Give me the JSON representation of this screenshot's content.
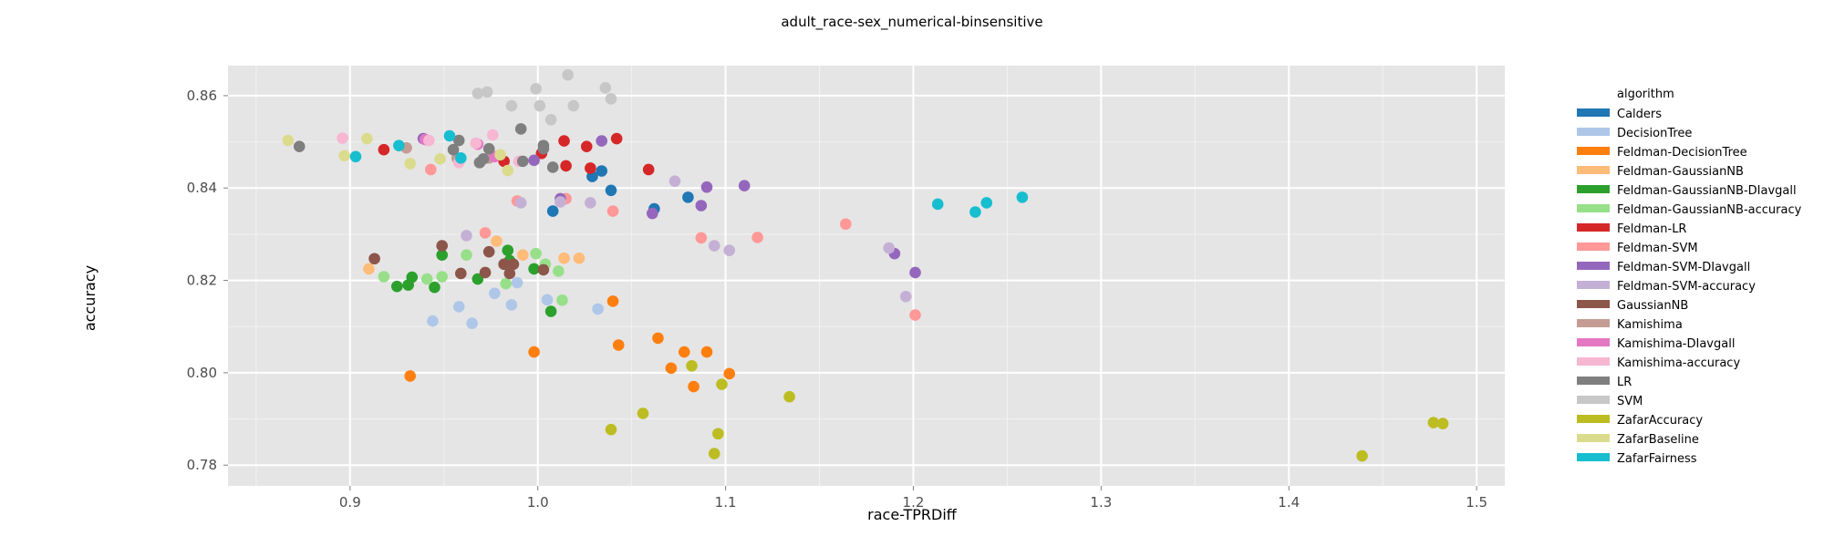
{
  "chart_data": {
    "type": "scatter",
    "title": "adult_race-sex_numerical-binsensitive",
    "xlabel": "race-TPRDiff",
    "ylabel": "accuracy",
    "xlim": [
      0.835,
      1.515
    ],
    "ylim": [
      0.7755,
      0.8665
    ],
    "xticks": [
      "0.9",
      "1.0",
      "1.1",
      "1.2",
      "1.3",
      "1.4",
      "1.5"
    ],
    "yticks": [
      "0.78",
      "0.80",
      "0.82",
      "0.84",
      "0.86"
    ],
    "grid": true,
    "legend_position": "right",
    "legend_title": "algorithm",
    "series": [
      {
        "name": "Calders",
        "color": "#1f77b4",
        "points": [
          [
            1.008,
            0.835
          ],
          [
            1.029,
            0.8425
          ],
          [
            1.034,
            0.8437
          ],
          [
            1.039,
            0.8395
          ],
          [
            1.062,
            0.8355
          ],
          [
            1.08,
            0.838
          ]
        ]
      },
      {
        "name": "DecisionTree",
        "color": "#aec7e8",
        "points": [
          [
            0.944,
            0.8112
          ],
          [
            0.958,
            0.8143
          ],
          [
            0.965,
            0.8107
          ],
          [
            0.977,
            0.8172
          ],
          [
            0.986,
            0.8147
          ],
          [
            0.989,
            0.8195
          ],
          [
            1.005,
            0.8158
          ],
          [
            1.032,
            0.8138
          ]
        ]
      },
      {
        "name": "Feldman-DecisionTree",
        "color": "#ff7f0e",
        "points": [
          [
            0.932,
            0.7993
          ],
          [
            0.998,
            0.8045
          ],
          [
            1.04,
            0.8155
          ],
          [
            1.043,
            0.806
          ],
          [
            1.064,
            0.8075
          ],
          [
            1.071,
            0.801
          ],
          [
            1.078,
            0.8045
          ],
          [
            1.083,
            0.797
          ],
          [
            1.09,
            0.8045
          ],
          [
            1.102,
            0.7998
          ]
        ]
      },
      {
        "name": "Feldman-GaussianNB",
        "color": "#ffbb78",
        "points": [
          [
            0.91,
            0.8225
          ],
          [
            0.978,
            0.8285
          ],
          [
            0.992,
            0.8255
          ],
          [
            1.014,
            0.8248
          ],
          [
            1.022,
            0.8248
          ]
        ]
      },
      {
        "name": "Feldman-GaussianNB-DIavgall",
        "color": "#2ca02c",
        "points": [
          [
            0.925,
            0.8187
          ],
          [
            0.931,
            0.819
          ],
          [
            0.933,
            0.8207
          ],
          [
            0.945,
            0.8185
          ],
          [
            0.949,
            0.8255
          ],
          [
            0.968,
            0.8203
          ],
          [
            0.984,
            0.8265
          ],
          [
            0.985,
            0.8243
          ],
          [
            0.998,
            0.8225
          ],
          [
            1.007,
            0.8133
          ]
        ]
      },
      {
        "name": "Feldman-GaussianNB-accuracy",
        "color": "#98df8a",
        "points": [
          [
            0.918,
            0.8208
          ],
          [
            0.941,
            0.8203
          ],
          [
            0.949,
            0.8208
          ],
          [
            0.962,
            0.8255
          ],
          [
            0.983,
            0.8193
          ],
          [
            0.999,
            0.8258
          ],
          [
            1.004,
            0.8235
          ],
          [
            1.011,
            0.822
          ],
          [
            1.013,
            0.8157
          ]
        ]
      },
      {
        "name": "Feldman-LR",
        "color": "#d62728",
        "points": [
          [
            0.918,
            0.8483
          ],
          [
            0.982,
            0.8458
          ],
          [
            1.002,
            0.8475
          ],
          [
            1.014,
            0.8502
          ],
          [
            1.015,
            0.8448
          ],
          [
            1.026,
            0.849
          ],
          [
            1.028,
            0.8443
          ],
          [
            1.042,
            0.8507
          ],
          [
            1.059,
            0.844
          ]
        ]
      },
      {
        "name": "Feldman-SVM",
        "color": "#ff9896",
        "points": [
          [
            0.943,
            0.844
          ],
          [
            0.972,
            0.8303
          ],
          [
            0.989,
            0.8372
          ],
          [
            1.015,
            0.8377
          ],
          [
            1.04,
            0.835
          ],
          [
            1.087,
            0.8292
          ],
          [
            1.117,
            0.8293
          ],
          [
            1.164,
            0.8322
          ],
          [
            1.201,
            0.8125
          ]
        ]
      },
      {
        "name": "Feldman-SVM-DIavgall",
        "color": "#9467bd",
        "points": [
          [
            0.939,
            0.8507
          ],
          [
            0.998,
            0.846
          ],
          [
            1.012,
            0.8377
          ],
          [
            1.034,
            0.8502
          ],
          [
            1.061,
            0.8345
          ],
          [
            1.087,
            0.8362
          ],
          [
            1.09,
            0.8402
          ],
          [
            1.11,
            0.8405
          ],
          [
            1.19,
            0.8258
          ],
          [
            1.201,
            0.8217
          ]
        ]
      },
      {
        "name": "Feldman-SVM-accuracy",
        "color": "#c5b0d5",
        "points": [
          [
            0.962,
            0.8297
          ],
          [
            0.991,
            0.8368
          ],
          [
            1.012,
            0.837
          ],
          [
            1.028,
            0.8368
          ],
          [
            1.073,
            0.8415
          ],
          [
            1.094,
            0.8275
          ],
          [
            1.102,
            0.8265
          ],
          [
            1.187,
            0.827
          ],
          [
            1.196,
            0.8165
          ]
        ]
      },
      {
        "name": "GaussianNB",
        "color": "#8c564b",
        "points": [
          [
            0.913,
            0.8247
          ],
          [
            0.949,
            0.8275
          ],
          [
            0.959,
            0.8215
          ],
          [
            0.972,
            0.8217
          ],
          [
            0.974,
            0.8262
          ],
          [
            0.982,
            0.8235
          ],
          [
            0.985,
            0.8215
          ],
          [
            0.987,
            0.8235
          ],
          [
            1.003,
            0.8223
          ]
        ]
      },
      {
        "name": "Kamishima",
        "color": "#c49c94",
        "points": [
          [
            0.93,
            0.8487
          ],
          [
            0.957,
            0.8465
          ],
          [
            0.974,
            0.8465
          ]
        ]
      },
      {
        "name": "Kamishima-DIavgall",
        "color": "#e377c2",
        "points": [
          [
            0.94,
            0.8505
          ],
          [
            0.968,
            0.8495
          ],
          [
            0.977,
            0.8468
          ]
        ]
      },
      {
        "name": "Kamishima-accuracy",
        "color": "#f7b6d2",
        "points": [
          [
            0.896,
            0.8508
          ],
          [
            0.942,
            0.8503
          ],
          [
            0.958,
            0.8455
          ],
          [
            0.967,
            0.8497
          ],
          [
            0.976,
            0.8515
          ],
          [
            0.99,
            0.8458
          ]
        ]
      },
      {
        "name": "LR",
        "color": "#7f7f7f",
        "points": [
          [
            0.873,
            0.849
          ],
          [
            0.955,
            0.8483
          ],
          [
            0.958,
            0.8503
          ],
          [
            0.969,
            0.8455
          ],
          [
            0.971,
            0.8463
          ],
          [
            0.974,
            0.8485
          ],
          [
            0.991,
            0.8528
          ],
          [
            0.992,
            0.8458
          ],
          [
            1.003,
            0.8492
          ],
          [
            1.003,
            0.8485
          ],
          [
            1.008,
            0.8445
          ]
        ]
      },
      {
        "name": "SVM",
        "color": "#c7c7c7",
        "points": [
          [
            0.968,
            0.8605
          ],
          [
            0.973,
            0.8608
          ],
          [
            0.986,
            0.8578
          ],
          [
            0.999,
            0.8615
          ],
          [
            1.001,
            0.8578
          ],
          [
            1.007,
            0.8548
          ],
          [
            1.016,
            0.8645
          ],
          [
            1.019,
            0.8578
          ],
          [
            1.036,
            0.8617
          ],
          [
            1.039,
            0.8593
          ]
        ]
      },
      {
        "name": "ZafarAccuracy",
        "color": "#bcbd22",
        "points": [
          [
            1.039,
            0.7877
          ],
          [
            1.056,
            0.7912
          ],
          [
            1.082,
            0.8015
          ],
          [
            1.094,
            0.7825
          ],
          [
            1.096,
            0.7868
          ],
          [
            1.098,
            0.7975
          ],
          [
            1.134,
            0.7948
          ],
          [
            1.439,
            0.782
          ],
          [
            1.477,
            0.7892
          ],
          [
            1.482,
            0.789
          ]
        ]
      },
      {
        "name": "ZafarBaseline",
        "color": "#dbdb8d",
        "points": [
          [
            0.867,
            0.8503
          ],
          [
            0.897,
            0.847
          ],
          [
            0.909,
            0.8507
          ],
          [
            0.932,
            0.8453
          ],
          [
            0.948,
            0.8463
          ],
          [
            0.98,
            0.8472
          ],
          [
            0.984,
            0.8438
          ]
        ]
      },
      {
        "name": "ZafarFairness",
        "color": "#17becf",
        "points": [
          [
            0.903,
            0.8468
          ],
          [
            0.926,
            0.8492
          ],
          [
            0.953,
            0.8513
          ],
          [
            0.959,
            0.8465
          ],
          [
            1.213,
            0.8365
          ],
          [
            1.233,
            0.8348
          ],
          [
            1.239,
            0.8368
          ],
          [
            1.258,
            0.838
          ]
        ]
      }
    ]
  }
}
